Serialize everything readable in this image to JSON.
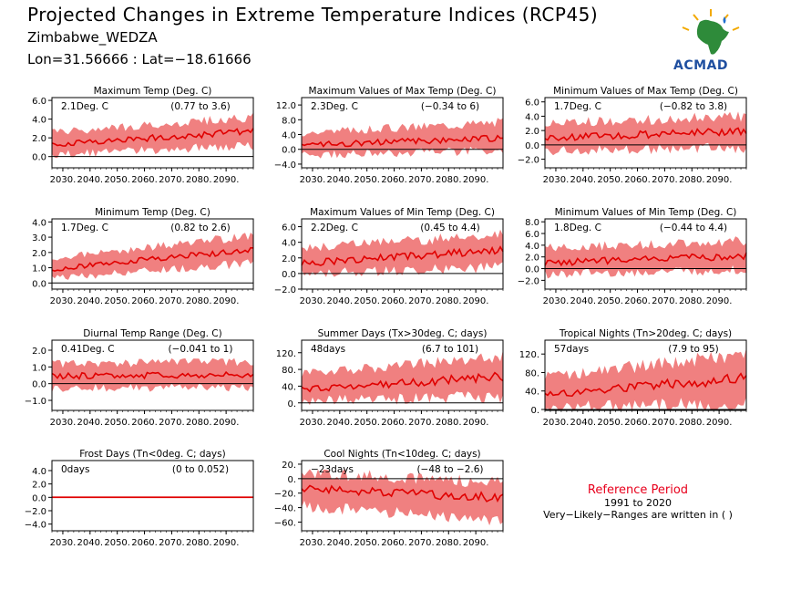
{
  "header": {
    "title": "Projected Changes in Extreme Temperature Indices (RCP45)",
    "location": "Zimbabwe_WEDZA",
    "coords": "Lon=31.56666 : Lat=−18.61666",
    "logo_text": "ACMAD"
  },
  "colors": {
    "band": "#f08080",
    "line": "#e00000",
    "axis": "#000000"
  },
  "chart_data": [
    {
      "type": "area",
      "title": "Maximum Temp (Deg. C)",
      "mean_label": "2.1Deg. C",
      "range_label": "(0.77 to 3.6)",
      "x_ticks": [
        "2030.",
        "2040.",
        "2050.",
        "2060.",
        "2070.",
        "2080.",
        "2090."
      ],
      "y_ticks": [
        "0.0",
        "2.0",
        "4.0",
        "6.0"
      ],
      "ylim": [
        -1.2,
        6.3
      ],
      "series": [
        {
          "x_start": 2026,
          "x_end": 2100,
          "mean_start": 1.3,
          "mean_end": 2.7,
          "low_start": 0.2,
          "low_end": 1.2,
          "high_start": 2.6,
          "high_end": 4.2
        }
      ]
    },
    {
      "type": "area",
      "title": "Maximum Values of Max Temp (Deg. C)",
      "mean_label": "2.3Deg. C",
      "range_label": "(−0.34 to 6)",
      "x_ticks": [
        "2030.",
        "2040.",
        "2050.",
        "2060.",
        "2070.",
        "2080.",
        "2090."
      ],
      "y_ticks": [
        "-4.0",
        "0.0",
        "4.0",
        "8.0",
        "12.0"
      ],
      "ylim": [
        -5.0,
        14.0
      ],
      "series": [
        {
          "x_start": 2026,
          "x_end": 2100,
          "mean_start": 1.2,
          "mean_end": 3.0,
          "low_start": -1.5,
          "low_end": -0.4,
          "high_start": 4.5,
          "high_end": 7.5
        }
      ]
    },
    {
      "type": "area",
      "title": "Minimum Values of Max Temp (Deg. C)",
      "mean_label": "1.7Deg. C",
      "range_label": "(−0.82 to 3.8)",
      "x_ticks": [
        "2030.",
        "2040.",
        "2050.",
        "2060.",
        "2070.",
        "2080.",
        "2090."
      ],
      "y_ticks": [
        "-2.0",
        "0.0",
        "2.0",
        "4.0",
        "6.0"
      ],
      "ylim": [
        -3.2,
        6.6
      ],
      "series": [
        {
          "x_start": 2026,
          "x_end": 2100,
          "mean_start": 0.9,
          "mean_end": 2.0,
          "low_start": -0.8,
          "low_end": -0.4,
          "high_start": 3.0,
          "high_end": 4.0
        }
      ]
    },
    {
      "type": "area",
      "title": "Minimum Temp (Deg. C)",
      "mean_label": "1.7Deg. C",
      "range_label": "(0.82 to 2.6)",
      "x_ticks": [
        "2030.",
        "2040.",
        "2050.",
        "2060.",
        "2070.",
        "2080.",
        "2090."
      ],
      "y_ticks": [
        "0.0",
        "1.0",
        "2.0",
        "3.0",
        "4.0"
      ],
      "ylim": [
        -0.4,
        4.2
      ],
      "series": [
        {
          "x_start": 2026,
          "x_end": 2100,
          "mean_start": 0.9,
          "mean_end": 2.2,
          "low_start": 0.3,
          "low_end": 1.3,
          "high_start": 1.6,
          "high_end": 3.1
        }
      ]
    },
    {
      "type": "area",
      "title": "Maximum Values of Min Temp (Deg. C)",
      "mean_label": "2.2Deg. C",
      "range_label": "(0.45 to 4.4)",
      "x_ticks": [
        "2030.",
        "2040.",
        "2050.",
        "2060.",
        "2070.",
        "2080.",
        "2090."
      ],
      "y_ticks": [
        "-2.0",
        "0.0",
        "2.0",
        "4.0",
        "6.0"
      ],
      "ylim": [
        -2.0,
        7.0
      ],
      "series": [
        {
          "x_start": 2026,
          "x_end": 2100,
          "mean_start": 1.3,
          "mean_end": 3.0,
          "low_start": 0.0,
          "low_end": 0.8,
          "high_start": 3.3,
          "high_end": 5.0
        }
      ]
    },
    {
      "type": "area",
      "title": "Minimum Values of Min Temp (Deg. C)",
      "mean_label": "1.8Deg. C",
      "range_label": "(−0.44 to 4.4)",
      "x_ticks": [
        "2030.",
        "2040.",
        "2050.",
        "2060.",
        "2070.",
        "2080.",
        "2090."
      ],
      "y_ticks": [
        "-2.0",
        "0.0",
        "2.0",
        "4.0",
        "6.0",
        "8.0"
      ],
      "ylim": [
        -3.5,
        8.5
      ],
      "series": [
        {
          "x_start": 2026,
          "x_end": 2100,
          "mean_start": 1.0,
          "mean_end": 2.2,
          "low_start": -1.0,
          "low_end": -0.2,
          "high_start": 3.5,
          "high_end": 4.8
        }
      ]
    },
    {
      "type": "area",
      "title": "Diurnal Temp Range (Deg. C)",
      "mean_label": "0.41Deg. C",
      "range_label": "(−0.041 to 1)",
      "x_ticks": [
        "2030.",
        "2040.",
        "2050.",
        "2060.",
        "2070.",
        "2080.",
        "2090."
      ],
      "y_ticks": [
        "-1.0",
        "0.0",
        "1.0",
        "2.0"
      ],
      "ylim": [
        -1.6,
        2.6
      ],
      "series": [
        {
          "x_start": 2026,
          "x_end": 2100,
          "mean_start": 0.45,
          "mean_end": 0.55,
          "low_start": -0.3,
          "low_end": -0.2,
          "high_start": 1.2,
          "high_end": 1.3
        }
      ]
    },
    {
      "type": "area",
      "title": "Summer Days (Tx>30deg. C; days)",
      "mean_label": "48days",
      "range_label": "(6.7 to 101)",
      "x_ticks": [
        "2030.",
        "2040.",
        "2050.",
        "2060.",
        "2070.",
        "2080.",
        "2090."
      ],
      "y_ticks": [
        "0.",
        "40.",
        "80.",
        "120."
      ],
      "ylim": [
        -18,
        150
      ],
      "series": [
        {
          "x_start": 2026,
          "x_end": 2100,
          "mean_start": 33,
          "mean_end": 62,
          "low_start": 5,
          "low_end": 15,
          "high_start": 70,
          "high_end": 110
        }
      ]
    },
    {
      "type": "area",
      "title": "Tropical Nights (Tn>20deg. C; days)",
      "mean_label": "57days",
      "range_label": "(7.9 to 95)",
      "x_ticks": [
        "2030.",
        "2040.",
        "2050.",
        "2060.",
        "2070.",
        "2080.",
        "2090."
      ],
      "y_ticks": [
        "0.",
        "40.",
        "80.",
        "120."
      ],
      "ylim": [
        -2,
        150
      ],
      "series": [
        {
          "x_start": 2026,
          "x_end": 2100,
          "mean_start": 32,
          "mean_end": 68,
          "low_start": 5,
          "low_end": 12,
          "high_start": 70,
          "high_end": 120
        }
      ]
    },
    {
      "type": "area",
      "title": "Frost Days (Tn<0deg. C; days)",
      "mean_label": "0days",
      "range_label": "(0 to 0.052)",
      "x_ticks": [
        "2030.",
        "2040.",
        "2050.",
        "2060.",
        "2070.",
        "2080.",
        "2090."
      ],
      "y_ticks": [
        "-4.0",
        "-2.0",
        "0.0",
        "2.0",
        "4.0"
      ],
      "ylim": [
        -5.0,
        5.5
      ],
      "series": [
        {
          "x_start": 2026,
          "x_end": 2100,
          "mean_start": 0.0,
          "mean_end": 0.0,
          "low_start": 0.0,
          "low_end": 0.0,
          "high_start": 0.15,
          "high_end": 0.15
        }
      ]
    },
    {
      "type": "area",
      "title": "Cool Nights (Tn<10deg. C; days)",
      "mean_label": "−23days",
      "range_label": "(−48 to −2.6)",
      "x_ticks": [
        "2030.",
        "2040.",
        "2050.",
        "2060.",
        "2070.",
        "2080.",
        "2090."
      ],
      "y_ticks": [
        "-60.",
        "-40.",
        "-20.",
        "0.",
        "20."
      ],
      "ylim": [
        -72,
        25
      ],
      "series": [
        {
          "x_start": 2026,
          "x_end": 2100,
          "mean_start": -13,
          "mean_end": -27,
          "low_start": -38,
          "low_end": -58,
          "high_start": 8,
          "high_end": -5
        }
      ]
    }
  ],
  "note": {
    "title": "Reference Period",
    "period": "1991 to 2020",
    "ranges": "Very−Likely−Ranges are written in ( )"
  }
}
